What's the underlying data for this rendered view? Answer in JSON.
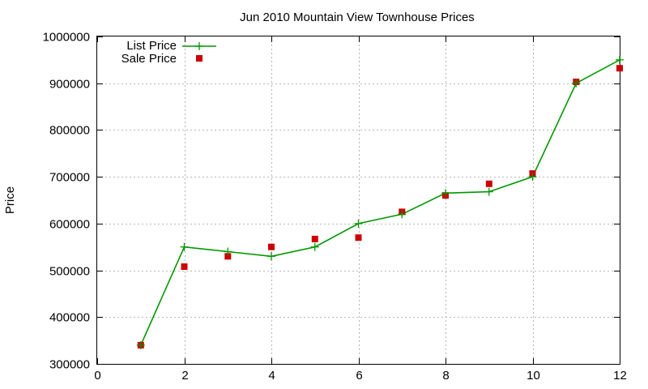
{
  "chart_data": {
    "type": "line",
    "title": "Jun 2010 Mountain View Townhouse Prices",
    "xlabel": "",
    "ylabel": "Price",
    "xlim": [
      0,
      12
    ],
    "ylim": [
      300000,
      1000000
    ],
    "x_ticks": [
      0,
      2,
      4,
      6,
      8,
      10,
      12
    ],
    "y_ticks": [
      300000,
      400000,
      500000,
      600000,
      700000,
      800000,
      900000,
      1000000
    ],
    "grid": true,
    "legend_position": "top-left",
    "series": [
      {
        "name": "List Price",
        "style": "line-with-plus-markers",
        "color": "#009900",
        "x": [
          1,
          2,
          3,
          4,
          5,
          6,
          7,
          8,
          9,
          10,
          11,
          12
        ],
        "y": [
          340000,
          550000,
          540000,
          530000,
          550000,
          600000,
          620000,
          665000,
          668000,
          700000,
          900000,
          950000
        ]
      },
      {
        "name": "Sale Price",
        "style": "square-markers",
        "color": "#cc0000",
        "x": [
          1,
          2,
          3,
          4,
          5,
          6,
          7,
          8,
          9,
          10,
          11,
          12
        ],
        "y": [
          340000,
          508000,
          530000,
          550000,
          567000,
          570000,
          625000,
          660000,
          685000,
          707000,
          903000,
          932000
        ]
      }
    ]
  }
}
